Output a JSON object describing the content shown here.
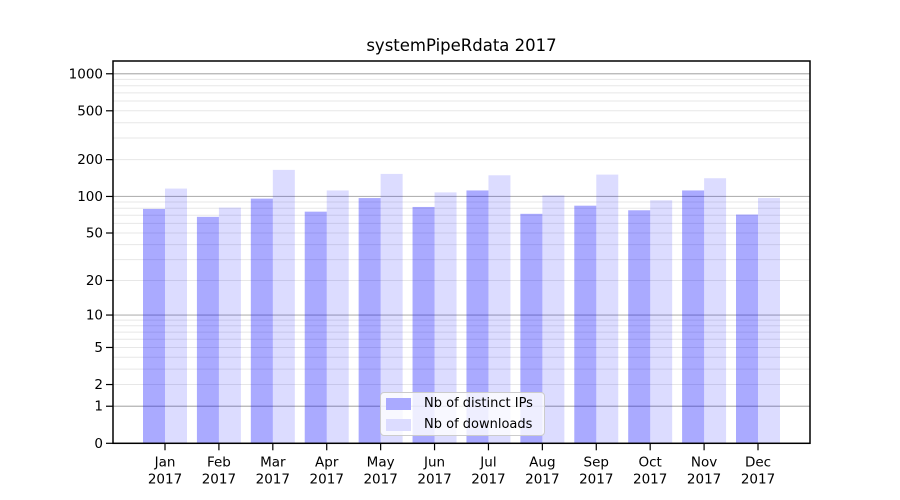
{
  "figure": {
    "title": "systemPipeRdata 2017",
    "background": "#ffffff"
  },
  "legend": {
    "items": [
      {
        "label": "Nb of distinct IPs",
        "swatch": "#aaaaff"
      },
      {
        "label": "Nb of downloads",
        "swatch": "#dcdcff"
      }
    ]
  },
  "chart_data": {
    "type": "bar",
    "title": "systemPipeRdata 2017",
    "months": [
      "Jan",
      "Feb",
      "Mar",
      "Apr",
      "May",
      "Jun",
      "Jul",
      "Aug",
      "Sep",
      "Oct",
      "Nov",
      "Dec"
    ],
    "year": "2017",
    "categories": [
      "Jan 2017",
      "Feb 2017",
      "Mar 2017",
      "Apr 2017",
      "May 2017",
      "Jun 2017",
      "Jul 2017",
      "Aug 2017",
      "Sep 2017",
      "Oct 2017",
      "Nov 2017",
      "Dec 2017"
    ],
    "series": [
      {
        "name": "Nb of distinct IPs",
        "color": "rgba(0,0,255,0.333)",
        "values": [
          79,
          68,
          96,
          75,
          97,
          82,
          112,
          72,
          84,
          77,
          112,
          71
        ]
      },
      {
        "name": "Nb of downloads",
        "color": "rgba(0,0,255,0.137)",
        "values": [
          116,
          81,
          165,
          112,
          153,
          108,
          149,
          102,
          151,
          93,
          141,
          97
        ]
      }
    ],
    "y_axis": {
      "scale": "log10(1+x)",
      "ticks": [
        0,
        1,
        2,
        5,
        10,
        20,
        50,
        100,
        200,
        500,
        1000
      ]
    },
    "ylim": [
      0,
      1270
    ],
    "grid": {
      "on": true,
      "major_at": [
        1,
        10,
        100,
        1000
      ],
      "minor_mantissas": [
        2,
        3,
        4,
        5,
        6,
        7,
        8,
        9
      ]
    },
    "colors": {
      "grid_major": "#b3b3b3",
      "grid_minor": "#e7e7e7",
      "axis": "#000000"
    },
    "legend_position": "bottom-center-inside"
  }
}
